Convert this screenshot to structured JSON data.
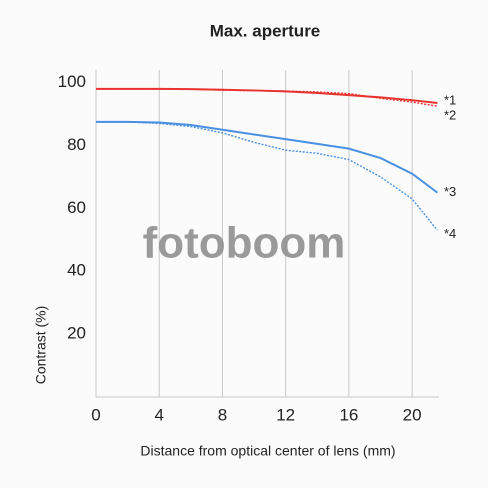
{
  "chart_data": {
    "type": "line",
    "title": "Max. aperture",
    "x_label": "Distance from optical center of lens (mm)",
    "y_label": "Contrast (%)",
    "watermark": "fotoboom",
    "x": [
      0,
      2,
      4,
      6,
      8,
      10,
      12,
      14,
      16,
      18,
      20,
      21.6
    ],
    "series": [
      {
        "name": "*1",
        "color": "#e8332f",
        "dashed": false,
        "values": [
          98,
          98,
          98,
          97.9,
          97.7,
          97.5,
          97.2,
          96.7,
          96,
          95.3,
          94.4,
          93.5
        ]
      },
      {
        "name": "*2",
        "color": "#e8332f",
        "dashed": true,
        "values": [
          98,
          98,
          98,
          97.9,
          97.6,
          97.4,
          97.3,
          97,
          96.5,
          95,
          93.8,
          92.5
        ]
      },
      {
        "name": "*3",
        "color": "#4a90e2",
        "dashed": false,
        "values": [
          87.5,
          87.5,
          87.3,
          86.5,
          85,
          83.5,
          82,
          80.5,
          79,
          76,
          71,
          65
        ]
      },
      {
        "name": "*4",
        "color": "#4a90e2",
        "dashed": true,
        "values": [
          87.5,
          87.5,
          87,
          86,
          84,
          81,
          78.5,
          77.5,
          75.5,
          70,
          63,
          53
        ]
      }
    ],
    "xlim": [
      0,
      21.7
    ],
    "ylim": [
      0,
      104
    ],
    "xticks": [
      0,
      4,
      8,
      12,
      16,
      20
    ],
    "yticks": [
      20,
      40,
      60,
      80,
      100
    ],
    "grid": true
  }
}
